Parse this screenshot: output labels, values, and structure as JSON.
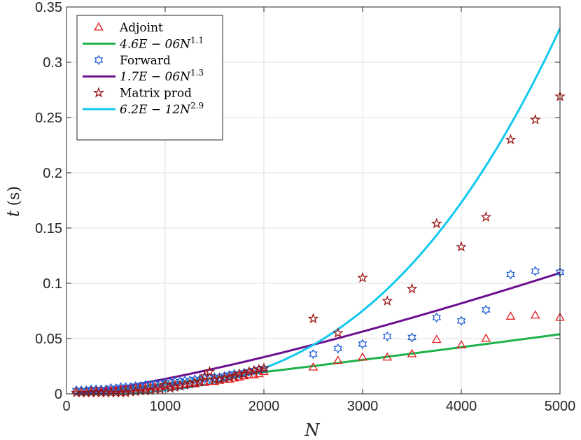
{
  "chart_data": {
    "type": "scatter",
    "title": "",
    "xlabel": "N",
    "ylabel": "t (s)",
    "ylabel_var": "t",
    "ylabel_unit": "(s)",
    "xlim": [
      0,
      5000
    ],
    "ylim": [
      0,
      0.35
    ],
    "xticks": [
      0,
      1000,
      2000,
      3000,
      4000,
      5000
    ],
    "xtick_labels": [
      "0",
      "1000",
      "2000",
      "3000",
      "4000",
      "5000"
    ],
    "yticks": [
      0,
      0.05,
      0.1,
      0.15,
      0.2,
      0.25,
      0.3,
      0.35
    ],
    "ytick_labels": [
      "0",
      "0.05",
      "0.1",
      "0.15",
      "0.2",
      "0.25",
      "0.3",
      "0.35"
    ],
    "grid": true,
    "legend_position": "top-left",
    "series": [
      {
        "name": "Adjoint",
        "kind": "markers",
        "marker": "triangle",
        "color": "#e8191c",
        "x": [
          100,
          150,
          200,
          250,
          300,
          350,
          400,
          450,
          500,
          550,
          600,
          650,
          700,
          750,
          800,
          850,
          900,
          950,
          1000,
          1050,
          1100,
          1150,
          1200,
          1250,
          1300,
          1350,
          1400,
          1450,
          1500,
          1550,
          1600,
          1650,
          1700,
          1750,
          1800,
          1850,
          1900,
          1950,
          2000,
          2500,
          2750,
          3000,
          3250,
          3500,
          3750,
          4000,
          4250,
          4500,
          4750,
          5000
        ],
        "y": [
          0.003,
          0.003,
          0.003,
          0.003,
          0.003,
          0.003,
          0.003,
          0.003,
          0.003,
          0.004,
          0.004,
          0.004,
          0.005,
          0.005,
          0.005,
          0.006,
          0.006,
          0.006,
          0.007,
          0.007,
          0.008,
          0.008,
          0.008,
          0.009,
          0.009,
          0.01,
          0.01,
          0.011,
          0.011,
          0.012,
          0.013,
          0.013,
          0.014,
          0.015,
          0.016,
          0.017,
          0.017,
          0.018,
          0.02,
          0.024,
          0.03,
          0.033,
          0.033,
          0.036,
          0.049,
          0.044,
          0.05,
          0.07,
          0.071,
          0.069
        ]
      },
      {
        "name": "4.6E − 06N^1.1",
        "label_main": "4.6E − 06N",
        "label_exp": "1.1",
        "kind": "line",
        "color": "#1db34a",
        "coef": 4.6e-06,
        "exponent": 1.1,
        "x_range": [
          100,
          5000
        ]
      },
      {
        "name": "Forward",
        "kind": "markers",
        "marker": "hexagram",
        "color": "#1f5fd6",
        "x": [
          100,
          150,
          200,
          250,
          300,
          350,
          400,
          450,
          500,
          550,
          600,
          650,
          700,
          750,
          800,
          850,
          900,
          950,
          1000,
          1050,
          1100,
          1150,
          1200,
          1250,
          1300,
          1350,
          1400,
          1450,
          1500,
          1550,
          1600,
          1650,
          1700,
          1750,
          1800,
          1850,
          1900,
          1950,
          2000,
          2500,
          2750,
          3000,
          3250,
          3500,
          3750,
          4000,
          4250,
          4500,
          4750,
          5000
        ],
        "y": [
          0.003,
          0.003,
          0.003,
          0.004,
          0.004,
          0.004,
          0.004,
          0.005,
          0.005,
          0.006,
          0.006,
          0.006,
          0.007,
          0.007,
          0.008,
          0.008,
          0.009,
          0.009,
          0.01,
          0.01,
          0.011,
          0.011,
          0.012,
          0.012,
          0.013,
          0.013,
          0.014,
          0.014,
          0.015,
          0.015,
          0.016,
          0.017,
          0.018,
          0.018,
          0.019,
          0.02,
          0.021,
          0.022,
          0.023,
          0.036,
          0.041,
          0.045,
          0.052,
          0.051,
          0.069,
          0.066,
          0.076,
          0.108,
          0.111,
          0.11
        ]
      },
      {
        "name": "1.7E − 06N^1.3",
        "label_main": "1.7E − 06N",
        "label_exp": "1.3",
        "kind": "line",
        "color": "#6a0f8e",
        "coef": 1.7e-06,
        "exponent": 1.3,
        "x_range": [
          100,
          5000
        ]
      },
      {
        "name": "Matrix prod",
        "kind": "markers",
        "marker": "pentagram",
        "color": "#9b1414",
        "x": [
          100,
          150,
          200,
          250,
          300,
          350,
          400,
          450,
          500,
          550,
          600,
          650,
          700,
          750,
          800,
          850,
          900,
          950,
          1000,
          1050,
          1100,
          1150,
          1200,
          1250,
          1300,
          1350,
          1400,
          1450,
          1500,
          1550,
          1600,
          1650,
          1700,
          1750,
          1800,
          1850,
          1900,
          1950,
          2000,
          2500,
          2750,
          3000,
          3250,
          3500,
          3750,
          4000,
          4250,
          4500,
          4750,
          5000
        ],
        "y": [
          0.001,
          0.001,
          0.001,
          0.001,
          0.001,
          0.001,
          0.001,
          0.001,
          0.001,
          0.001,
          0.001,
          0.002,
          0.002,
          0.003,
          0.003,
          0.003,
          0.004,
          0.004,
          0.008,
          0.005,
          0.006,
          0.007,
          0.008,
          0.009,
          0.01,
          0.011,
          0.016,
          0.02,
          0.013,
          0.013,
          0.014,
          0.015,
          0.016,
          0.018,
          0.018,
          0.02,
          0.021,
          0.022,
          0.023,
          0.068,
          0.055,
          0.105,
          0.084,
          0.095,
          0.154,
          0.133,
          0.16,
          0.23,
          0.248,
          0.269
        ]
      },
      {
        "name": "6.2E − 12N^2.9",
        "label_main": "6.2E − 12N",
        "label_exp": "2.9",
        "kind": "line",
        "color": "#12c8ef",
        "coef": 6.2e-12,
        "exponent": 2.9,
        "x_range": [
          100,
          5000
        ]
      }
    ]
  }
}
